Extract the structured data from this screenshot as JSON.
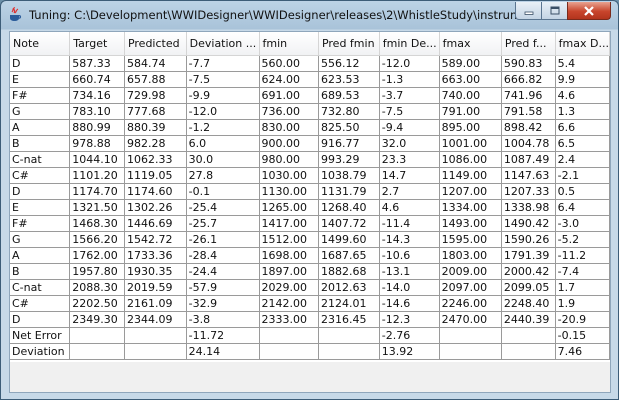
{
  "window": {
    "title": "Tuning: C:\\Development\\WWIDesigner\\WWIDesigner\\releases\\2\\WhistleStudy\\instrume...",
    "controls": {
      "minimize_icon": "minimize-icon",
      "maximize_icon": "maximize-icon",
      "close_icon": "close-icon"
    }
  },
  "table": {
    "columns": [
      "Note",
      "Target",
      "Predicted",
      "Deviation ...",
      "fmin",
      "Pred fmin",
      "fmin De...",
      "fmax",
      "Pred f...",
      "fmax D..."
    ],
    "rows": [
      [
        "D",
        "587.33",
        "584.74",
        "-7.7",
        "560.00",
        "556.12",
        "-12.0",
        "589.00",
        "590.83",
        "5.4"
      ],
      [
        "E",
        "660.74",
        "657.88",
        "-7.5",
        "624.00",
        "623.53",
        "-1.3",
        "663.00",
        "666.82",
        "9.9"
      ],
      [
        "F#",
        "734.16",
        "729.98",
        "-9.9",
        "691.00",
        "689.53",
        "-3.7",
        "740.00",
        "741.96",
        "4.6"
      ],
      [
        "G",
        "783.10",
        "777.68",
        "-12.0",
        "736.00",
        "732.80",
        "-7.5",
        "791.00",
        "791.58",
        "1.3"
      ],
      [
        "A",
        "880.99",
        "880.39",
        "-1.2",
        "830.00",
        "825.50",
        "-9.4",
        "895.00",
        "898.42",
        "6.6"
      ],
      [
        "B",
        "978.88",
        "982.28",
        "6.0",
        "900.00",
        "916.77",
        "32.0",
        "1001.00",
        "1004.78",
        "6.5"
      ],
      [
        "C-nat",
        "1044.10",
        "1062.33",
        "30.0",
        "980.00",
        "993.29",
        "23.3",
        "1086.00",
        "1087.49",
        "2.4"
      ],
      [
        "C#",
        "1101.20",
        "1119.05",
        "27.8",
        "1030.00",
        "1038.79",
        "14.7",
        "1149.00",
        "1147.63",
        "-2.1"
      ],
      [
        "D",
        "1174.70",
        "1174.60",
        "-0.1",
        "1130.00",
        "1131.79",
        "2.7",
        "1207.00",
        "1207.33",
        "0.5"
      ],
      [
        "E",
        "1321.50",
        "1302.26",
        "-25.4",
        "1265.00",
        "1268.40",
        "4.6",
        "1334.00",
        "1338.98",
        "6.4"
      ],
      [
        "F#",
        "1468.30",
        "1446.69",
        "-25.7",
        "1417.00",
        "1407.72",
        "-11.4",
        "1493.00",
        "1490.42",
        "-3.0"
      ],
      [
        "G",
        "1566.20",
        "1542.72",
        "-26.1",
        "1512.00",
        "1499.60",
        "-14.3",
        "1595.00",
        "1590.26",
        "-5.2"
      ],
      [
        "A",
        "1762.00",
        "1733.36",
        "-28.4",
        "1698.00",
        "1687.65",
        "-10.6",
        "1803.00",
        "1791.39",
        "-11.2"
      ],
      [
        "B",
        "1957.80",
        "1930.35",
        "-24.4",
        "1897.00",
        "1882.68",
        "-13.1",
        "2009.00",
        "2000.42",
        "-7.4"
      ],
      [
        "C-nat",
        "2088.30",
        "2019.59",
        "-57.9",
        "2029.00",
        "2012.63",
        "-14.0",
        "2097.00",
        "2099.05",
        "1.7"
      ],
      [
        "C#",
        "2202.50",
        "2161.09",
        "-32.9",
        "2142.00",
        "2124.01",
        "-14.6",
        "2246.00",
        "2248.40",
        "1.9"
      ],
      [
        "D",
        "2349.30",
        "2344.09",
        "-3.8",
        "2333.00",
        "2316.45",
        "-12.3",
        "2470.00",
        "2440.39",
        "-20.9"
      ],
      [
        "Net Error",
        "",
        "",
        "-11.72",
        "",
        "",
        "-2.76",
        "",
        "",
        "-0.15"
      ],
      [
        "Deviation",
        "",
        "",
        "24.14",
        "",
        "",
        "13.92",
        "",
        "",
        "7.46"
      ]
    ]
  },
  "colors": {
    "title_bar": "#a9c3d9",
    "close_button": "#c8452c",
    "grid_line": "#9a9a9a"
  }
}
